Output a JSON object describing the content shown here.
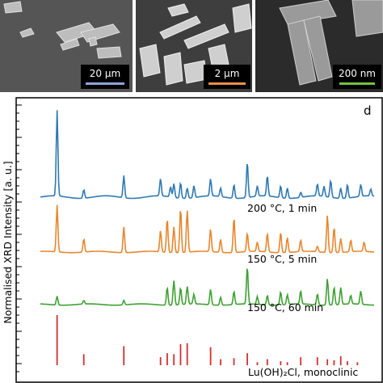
{
  "sem_panels": [
    {
      "scale_label": "20 μm",
      "scale_color": "#8fa3d9"
    },
    {
      "scale_label": "2 μm",
      "scale_color": "#e8904a"
    },
    {
      "scale_label": "200 nm",
      "scale_color": "#76c043"
    }
  ],
  "chart_data": {
    "type": "line",
    "panel_label": "d",
    "ylabel": "Normalised XRD Intensity [a. u.]",
    "ylabel_units_note": "",
    "series": [
      {
        "name": "200 °C, 1 min",
        "color": "#2f79b4",
        "baseline": 0.0,
        "peaks": [
          [
            0.05,
            1.0
          ],
          [
            0.13,
            0.1
          ],
          [
            0.25,
            0.26
          ],
          [
            0.36,
            0.2
          ],
          [
            0.39,
            0.12
          ],
          [
            0.4,
            0.16
          ],
          [
            0.42,
            0.18
          ],
          [
            0.44,
            0.12
          ],
          [
            0.46,
            0.14
          ],
          [
            0.51,
            0.2
          ],
          [
            0.54,
            0.1
          ],
          [
            0.58,
            0.16
          ],
          [
            0.62,
            0.42
          ],
          [
            0.65,
            0.12
          ],
          [
            0.68,
            0.24
          ],
          [
            0.72,
            0.14
          ],
          [
            0.74,
            0.12
          ],
          [
            0.78,
            0.06
          ],
          [
            0.83,
            0.14
          ],
          [
            0.85,
            0.12
          ],
          [
            0.87,
            0.2
          ],
          [
            0.9,
            0.12
          ],
          [
            0.92,
            0.16
          ],
          [
            0.96,
            0.14
          ],
          [
            0.99,
            0.08
          ]
        ]
      },
      {
        "name": "150 °C, 5 min",
        "color": "#e8862e",
        "baseline": 0.0,
        "peaks": [
          [
            0.05,
            1.0
          ],
          [
            0.13,
            0.28
          ],
          [
            0.25,
            0.55
          ],
          [
            0.36,
            0.45
          ],
          [
            0.38,
            0.72
          ],
          [
            0.4,
            0.55
          ],
          [
            0.42,
            0.95
          ],
          [
            0.44,
            0.9
          ],
          [
            0.51,
            0.48
          ],
          [
            0.54,
            0.28
          ],
          [
            0.58,
            0.75
          ],
          [
            0.62,
            0.4
          ],
          [
            0.65,
            0.2
          ],
          [
            0.68,
            0.4
          ],
          [
            0.72,
            0.44
          ],
          [
            0.74,
            0.32
          ],
          [
            0.78,
            0.25
          ],
          [
            0.83,
            0.12
          ],
          [
            0.86,
            0.8
          ],
          [
            0.88,
            0.55
          ],
          [
            0.9,
            0.3
          ],
          [
            0.93,
            0.25
          ],
          [
            0.97,
            0.2
          ]
        ]
      },
      {
        "name": "150 °C, 60 min",
        "color": "#3ea133",
        "baseline": 0.0,
        "peaks": [
          [
            0.05,
            0.2
          ],
          [
            0.13,
            0.08
          ],
          [
            0.25,
            0.1
          ],
          [
            0.38,
            0.4
          ],
          [
            0.4,
            0.55
          ],
          [
            0.42,
            0.38
          ],
          [
            0.44,
            0.4
          ],
          [
            0.46,
            0.22
          ],
          [
            0.51,
            0.35
          ],
          [
            0.54,
            0.18
          ],
          [
            0.58,
            0.3
          ],
          [
            0.62,
            0.85
          ],
          [
            0.65,
            0.18
          ],
          [
            0.68,
            0.22
          ],
          [
            0.72,
            0.3
          ],
          [
            0.74,
            0.22
          ],
          [
            0.78,
            0.3
          ],
          [
            0.83,
            0.25
          ],
          [
            0.86,
            0.6
          ],
          [
            0.88,
            0.4
          ],
          [
            0.9,
            0.38
          ],
          [
            0.93,
            0.2
          ],
          [
            0.96,
            0.3
          ]
        ]
      }
    ],
    "reference": {
      "name": "Lu(OH)₂Cl, monoclinic",
      "color": "#d42f2f",
      "sticks": [
        [
          0.05,
          1.0
        ],
        [
          0.13,
          0.22
        ],
        [
          0.25,
          0.38
        ],
        [
          0.36,
          0.16
        ],
        [
          0.38,
          0.24
        ],
        [
          0.4,
          0.22
        ],
        [
          0.42,
          0.42
        ],
        [
          0.44,
          0.44
        ],
        [
          0.51,
          0.36
        ],
        [
          0.54,
          0.12
        ],
        [
          0.58,
          0.14
        ],
        [
          0.62,
          0.24
        ],
        [
          0.65,
          0.06
        ],
        [
          0.68,
          0.12
        ],
        [
          0.72,
          0.08
        ],
        [
          0.74,
          0.06
        ],
        [
          0.78,
          0.16
        ],
        [
          0.83,
          0.16
        ],
        [
          0.86,
          0.12
        ],
        [
          0.88,
          0.1
        ],
        [
          0.9,
          0.18
        ],
        [
          0.92,
          0.08
        ],
        [
          0.95,
          0.06
        ]
      ]
    }
  }
}
